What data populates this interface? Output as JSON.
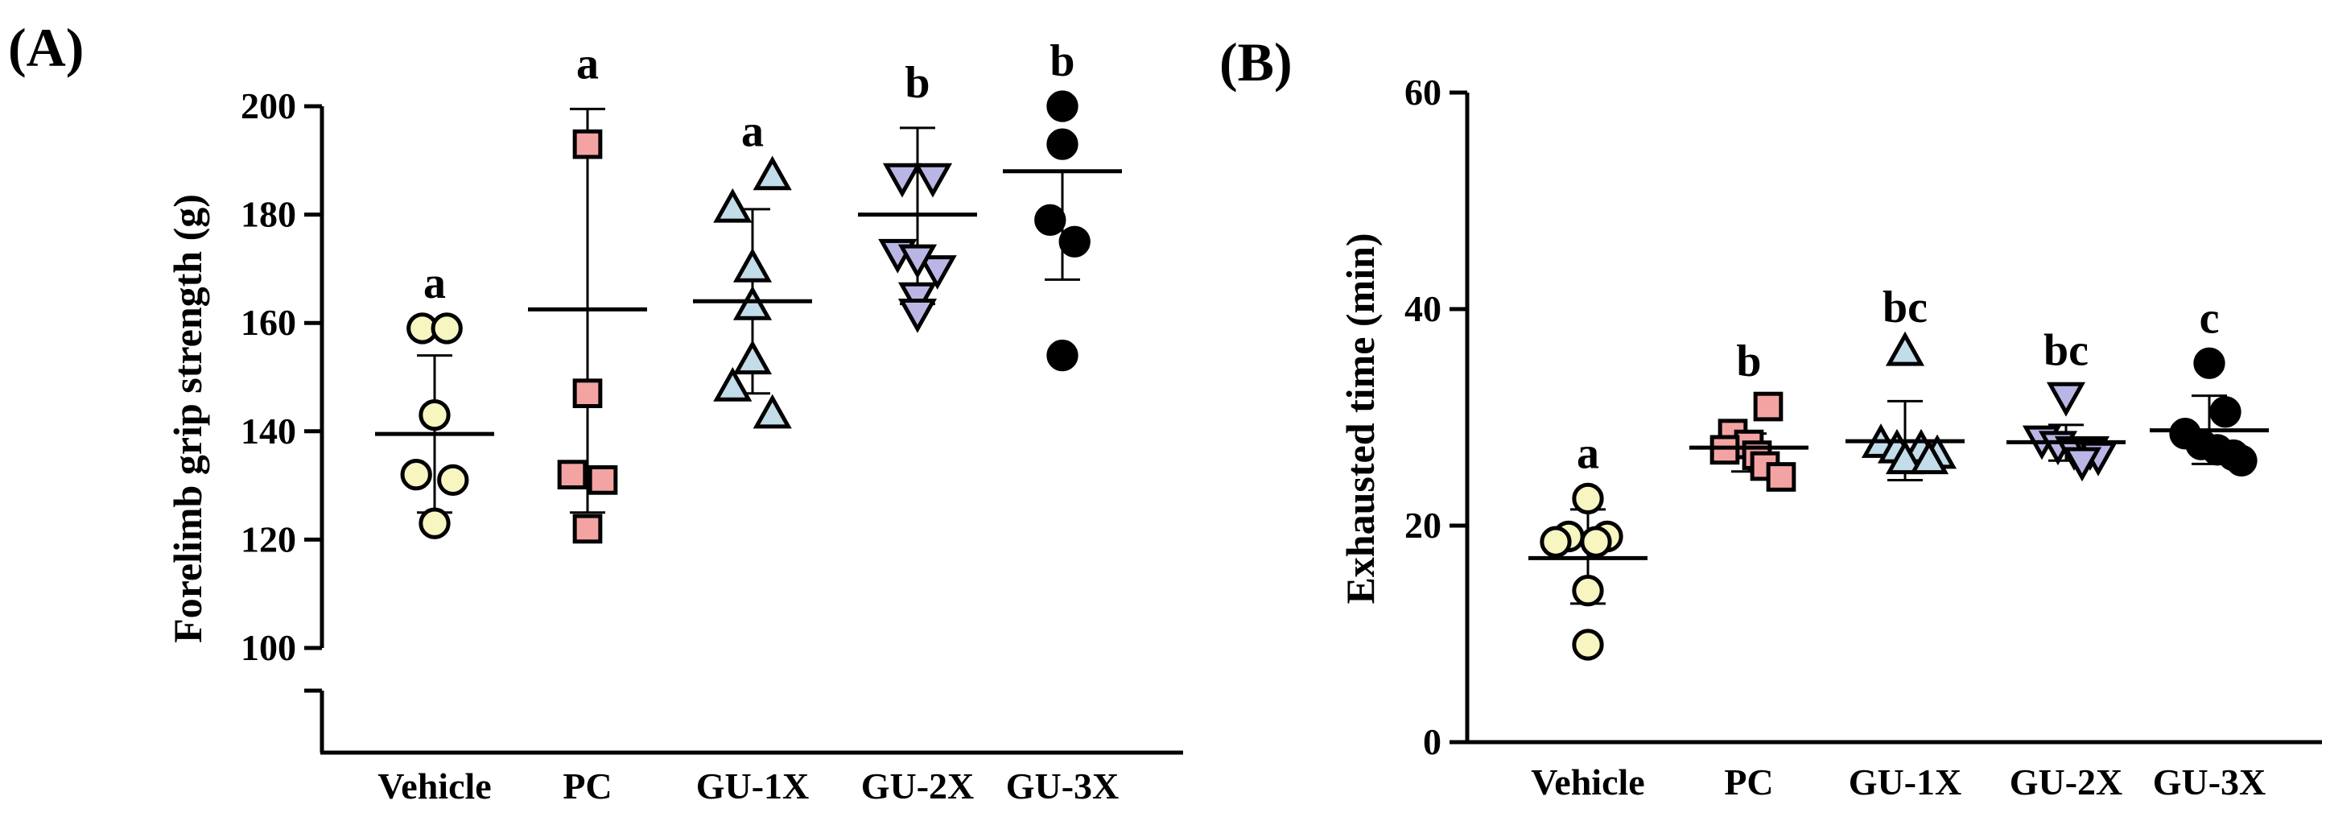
{
  "chart_data": [
    {
      "type": "scatter",
      "panel_label": "(A)",
      "ylabel": "Forelimb grip strength (g)",
      "xlabel": "",
      "ylim": [
        100,
        200
      ],
      "axis_break_below": 100,
      "yticks": [
        100,
        120,
        140,
        160,
        180,
        200
      ],
      "categories": [
        "Vehicle",
        "PC",
        "GU-1X",
        "GU-2X",
        "GU-3X"
      ],
      "series": [
        {
          "name": "Vehicle",
          "marker": "circle",
          "color": "#f7f5c0",
          "points": [
            [
              -0.08,
              159
            ],
            [
              0.08,
              159
            ],
            [
              0,
              143
            ],
            [
              -0.12,
              132
            ],
            [
              0.12,
              131
            ],
            [
              0,
              123
            ]
          ],
          "mean": 139.5,
          "upper": 154,
          "lower": 125,
          "letter": "a"
        },
        {
          "name": "PC",
          "marker": "square",
          "color": "#f4a3a3",
          "points": [
            [
              0,
              193
            ],
            [
              0,
              147
            ],
            [
              -0.1,
              132
            ],
            [
              0.1,
              131
            ],
            [
              0,
              122
            ]
          ],
          "mean": 162.5,
          "upper": 199.5,
          "lower": 125,
          "letter": "a"
        },
        {
          "name": "GU-1X",
          "marker": "triangle-up",
          "color": "#c2dcea",
          "points": [
            [
              0.13,
              187
            ],
            [
              -0.13,
              181
            ],
            [
              0,
              170
            ],
            [
              0,
              163
            ],
            [
              0,
              153
            ],
            [
              -0.13,
              148
            ],
            [
              0.13,
              143
            ]
          ],
          "mean": 164,
          "upper": 181,
          "lower": 147,
          "letter": "a"
        },
        {
          "name": "GU-2X",
          "marker": "triangle-down",
          "color": "#b9b6e6",
          "points": [
            [
              -0.1,
              187
            ],
            [
              0.1,
              187
            ],
            [
              -0.13,
              173
            ],
            [
              0.13,
              170
            ],
            [
              0,
              172
            ],
            [
              0,
              165
            ],
            [
              0,
              162
            ]
          ],
          "mean": 180,
          "upper": 196,
          "lower": 163.5,
          "letter": "b"
        },
        {
          "name": "GU-3X",
          "marker": "circle",
          "color": "#000000",
          "points": [
            [
              0,
              200
            ],
            [
              0,
              193
            ],
            [
              -0.08,
              179
            ],
            [
              0.08,
              175
            ],
            [
              0,
              154
            ]
          ],
          "mean": 188,
          "upper": null,
          "lower": 168,
          "letter": "b"
        }
      ]
    },
    {
      "type": "scatter",
      "panel_label": "(B)",
      "ylabel": "Exhausted time (min)",
      "xlabel": "",
      "ylim": [
        0,
        60
      ],
      "yticks": [
        0,
        20,
        40,
        60
      ],
      "categories": [
        "Vehicle",
        "PC",
        "GU-1X",
        "GU-2X",
        "GU-3X"
      ],
      "series": [
        {
          "name": "Vehicle",
          "marker": "circle",
          "color": "#f7f5c0",
          "points": [
            [
              0,
              22.5
            ],
            [
              -0.12,
              19
            ],
            [
              0.12,
              19
            ],
            [
              -0.2,
              18.5
            ],
            [
              0.05,
              18.5
            ],
            [
              0,
              14
            ],
            [
              0,
              9
            ]
          ],
          "mean": 17,
          "upper": 21.5,
          "lower": 12.8,
          "letter": "a"
        },
        {
          "name": "PC",
          "marker": "square",
          "color": "#f4a3a3",
          "points": [
            [
              0.12,
              31
            ],
            [
              -0.1,
              28.5
            ],
            [
              0,
              27.5
            ],
            [
              -0.15,
              27
            ],
            [
              0.05,
              26.5
            ],
            [
              0.1,
              25.5
            ],
            [
              0.2,
              24.5
            ]
          ],
          "mean": 27.2,
          "upper": 28.5,
          "lower": 25,
          "letter": "b"
        },
        {
          "name": "GU-1X",
          "marker": "triangle-up",
          "color": "#c2dcea",
          "points": [
            [
              0,
              36
            ],
            [
              -0.15,
              27.5
            ],
            [
              -0.05,
              27
            ],
            [
              0.1,
              27
            ],
            [
              0.2,
              26.5
            ],
            [
              0,
              26
            ],
            [
              0.15,
              26
            ]
          ],
          "mean": 27.8,
          "upper": 31.5,
          "lower": 24.2,
          "letter": "bc"
        },
        {
          "name": "GU-2X",
          "marker": "triangle-down",
          "color": "#b9b6e6",
          "points": [
            [
              0,
              32
            ],
            [
              -0.15,
              28
            ],
            [
              -0.05,
              27.5
            ],
            [
              0.05,
              27
            ],
            [
              0.15,
              27
            ],
            [
              0.2,
              26.5
            ],
            [
              0.1,
              26
            ]
          ],
          "mean": 27.7,
          "upper": 29.3,
          "lower": 26,
          "letter": "bc"
        },
        {
          "name": "GU-3X",
          "marker": "circle",
          "color": "#000000",
          "points": [
            [
              0,
              35
            ],
            [
              0.1,
              30.5
            ],
            [
              -0.15,
              28.5
            ],
            [
              -0.05,
              27.5
            ],
            [
              0.05,
              27
            ],
            [
              0.15,
              26.5
            ],
            [
              0.2,
              26
            ]
          ],
          "mean": 28.8,
          "upper": 32,
          "lower": 25.7,
          "letter": "c"
        }
      ]
    }
  ]
}
